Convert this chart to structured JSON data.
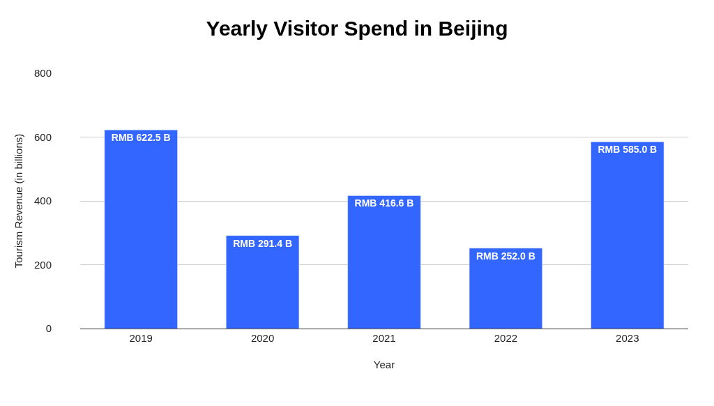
{
  "chart_data": {
    "type": "bar",
    "title": "Yearly Visitor Spend in Beijing",
    "xlabel": "Year",
    "ylabel": "Tourism Revenue (in billions)",
    "categories": [
      "2019",
      "2020",
      "2021",
      "2022",
      "2023"
    ],
    "values": [
      622.5,
      291.4,
      416.6,
      252.0,
      585.0
    ],
    "value_labels": [
      "RMB 622.5 B",
      "RMB 291.4 B",
      "RMB 416.6 B",
      "RMB 252.0 B",
      "RMB 585.0 B"
    ],
    "color": "#3366ff",
    "ylim": [
      0,
      800
    ],
    "yticks": [
      0,
      200,
      400,
      600,
      800
    ],
    "grid": "y"
  }
}
